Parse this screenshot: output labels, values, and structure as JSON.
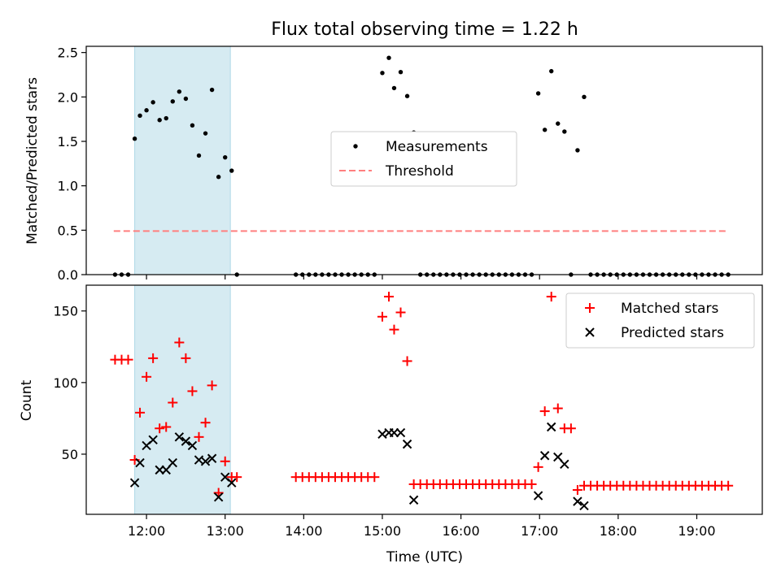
{
  "chart_data": [
    {
      "type": "scatter",
      "title": "Flux total observing time = 1.22 h",
      "ylabel": "Matched/Predicted stars",
      "xlabel": "",
      "xlim": [
        "11:14",
        "19:50"
      ],
      "ylim": [
        0,
        2.57
      ],
      "yticks": [
        0.0,
        0.5,
        1.0,
        1.5,
        2.0,
        2.5
      ],
      "ytick_labels": [
        "0.0",
        "0.5",
        "1.0",
        "1.5",
        "2.0",
        "2.5"
      ],
      "highlight_span": [
        "11:51",
        "13:04"
      ],
      "threshold": {
        "name": "Threshold",
        "value": 0.49,
        "x_start": "11:35",
        "x_end": "19:24",
        "color": "#ff7f7f"
      },
      "series": [
        {
          "name": "Measurements",
          "marker": "dot",
          "color": "#000000",
          "points": [
            [
              "11:36",
              0
            ],
            [
              "11:41",
              0
            ],
            [
              "11:46",
              0
            ],
            [
              "11:51",
              1.53
            ],
            [
              "11:55",
              1.79
            ],
            [
              "12:00",
              1.85
            ],
            [
              "12:05",
              1.94
            ],
            [
              "12:10",
              1.74
            ],
            [
              "12:15",
              1.76
            ],
            [
              "12:20",
              1.95
            ],
            [
              "12:25",
              2.06
            ],
            [
              "12:30",
              1.98
            ],
            [
              "12:35",
              1.68
            ],
            [
              "12:40",
              1.34
            ],
            [
              "12:45",
              1.59
            ],
            [
              "12:50",
              2.08
            ],
            [
              "12:55",
              1.1
            ],
            [
              "13:00",
              1.32
            ],
            [
              "13:05",
              1.17
            ],
            [
              "13:09",
              0
            ],
            [
              "13:54",
              0
            ],
            [
              "13:59",
              0
            ],
            [
              "14:04",
              0
            ],
            [
              "14:09",
              0
            ],
            [
              "14:14",
              0
            ],
            [
              "14:19",
              0
            ],
            [
              "14:24",
              0
            ],
            [
              "14:29",
              0
            ],
            [
              "14:34",
              0
            ],
            [
              "14:39",
              0
            ],
            [
              "14:44",
              0
            ],
            [
              "14:49",
              0
            ],
            [
              "14:54",
              0
            ],
            [
              "15:00",
              2.27
            ],
            [
              "15:05",
              2.44
            ],
            [
              "15:09",
              2.1
            ],
            [
              "15:14",
              2.28
            ],
            [
              "15:19",
              2.01
            ],
            [
              "15:24",
              1.6
            ],
            [
              "15:29",
              0
            ],
            [
              "15:34",
              0
            ],
            [
              "15:39",
              0
            ],
            [
              "15:44",
              0
            ],
            [
              "15:49",
              0
            ],
            [
              "15:54",
              0
            ],
            [
              "15:59",
              0
            ],
            [
              "16:04",
              0
            ],
            [
              "16:09",
              0
            ],
            [
              "16:14",
              0
            ],
            [
              "16:19",
              0
            ],
            [
              "16:24",
              0
            ],
            [
              "16:29",
              0
            ],
            [
              "16:34",
              0
            ],
            [
              "16:39",
              0
            ],
            [
              "16:44",
              0
            ],
            [
              "16:49",
              0
            ],
            [
              "16:54",
              0
            ],
            [
              "16:59",
              2.04
            ],
            [
              "17:04",
              1.63
            ],
            [
              "17:09",
              2.29
            ],
            [
              "17:14",
              1.7
            ],
            [
              "17:19",
              1.61
            ],
            [
              "17:24",
              0
            ],
            [
              "17:29",
              1.4
            ],
            [
              "17:34",
              2.0
            ],
            [
              "17:39",
              0
            ],
            [
              "17:44",
              0
            ],
            [
              "17:49",
              0
            ],
            [
              "17:54",
              0
            ],
            [
              "17:59",
              0
            ],
            [
              "18:04",
              0
            ],
            [
              "18:09",
              0
            ],
            [
              "18:14",
              0
            ],
            [
              "18:19",
              0
            ],
            [
              "18:24",
              0
            ],
            [
              "18:29",
              0
            ],
            [
              "18:34",
              0
            ],
            [
              "18:39",
              0
            ],
            [
              "18:44",
              0
            ],
            [
              "18:49",
              0
            ],
            [
              "18:54",
              0
            ],
            [
              "18:59",
              0
            ],
            [
              "19:04",
              0
            ],
            [
              "19:09",
              0
            ],
            [
              "19:14",
              0
            ],
            [
              "19:19",
              0
            ],
            [
              "19:24",
              0
            ]
          ]
        }
      ],
      "legend": {
        "placement": "center"
      }
    },
    {
      "type": "scatter",
      "title": "",
      "ylabel": "Count",
      "xlabel": "Time (UTC)",
      "xlim": [
        "11:14",
        "19:50"
      ],
      "ylim": [
        8,
        168
      ],
      "yticks": [
        50,
        100,
        150
      ],
      "ytick_labels": [
        "50",
        "100",
        "150"
      ],
      "xticks": [
        "12:00",
        "13:00",
        "14:00",
        "15:00",
        "16:00",
        "17:00",
        "18:00",
        "19:00"
      ],
      "xtick_labels": [
        "12:00",
        "13:00",
        "14:00",
        "15:00",
        "16:00",
        "17:00",
        "18:00",
        "19:00"
      ],
      "highlight_span": [
        "11:51",
        "13:04"
      ],
      "series": [
        {
          "name": "Matched stars",
          "marker": "plus",
          "color": "#ff0000",
          "points": [
            [
              "11:36",
              116
            ],
            [
              "11:41",
              116
            ],
            [
              "11:46",
              116
            ],
            [
              "11:51",
              46
            ],
            [
              "11:55",
              79
            ],
            [
              "12:00",
              104
            ],
            [
              "12:05",
              117
            ],
            [
              "12:10",
              68
            ],
            [
              "12:15",
              69
            ],
            [
              "12:20",
              86
            ],
            [
              "12:25",
              128
            ],
            [
              "12:30",
              117
            ],
            [
              "12:35",
              94
            ],
            [
              "12:40",
              62
            ],
            [
              "12:45",
              72
            ],
            [
              "12:50",
              98
            ],
            [
              "12:55",
              23
            ],
            [
              "13:00",
              45
            ],
            [
              "13:05",
              34
            ],
            [
              "13:09",
              34
            ],
            [
              "13:54",
              34
            ],
            [
              "13:59",
              34
            ],
            [
              "14:04",
              34
            ],
            [
              "14:09",
              34
            ],
            [
              "14:14",
              34
            ],
            [
              "14:19",
              34
            ],
            [
              "14:24",
              34
            ],
            [
              "14:29",
              34
            ],
            [
              "14:34",
              34
            ],
            [
              "14:39",
              34
            ],
            [
              "14:44",
              34
            ],
            [
              "14:49",
              34
            ],
            [
              "14:54",
              34
            ],
            [
              "15:00",
              146
            ],
            [
              "15:05",
              160
            ],
            [
              "15:09",
              137
            ],
            [
              "15:14",
              149
            ],
            [
              "15:19",
              115
            ],
            [
              "15:24",
              29
            ],
            [
              "15:29",
              29
            ],
            [
              "15:34",
              29
            ],
            [
              "15:39",
              29
            ],
            [
              "15:44",
              29
            ],
            [
              "15:49",
              29
            ],
            [
              "15:54",
              29
            ],
            [
              "15:59",
              29
            ],
            [
              "16:04",
              29
            ],
            [
              "16:09",
              29
            ],
            [
              "16:14",
              29
            ],
            [
              "16:19",
              29
            ],
            [
              "16:24",
              29
            ],
            [
              "16:29",
              29
            ],
            [
              "16:34",
              29
            ],
            [
              "16:39",
              29
            ],
            [
              "16:44",
              29
            ],
            [
              "16:49",
              29
            ],
            [
              "16:54",
              29
            ],
            [
              "16:59",
              41
            ],
            [
              "17:04",
              80
            ],
            [
              "17:09",
              160
            ],
            [
              "17:14",
              82
            ],
            [
              "17:19",
              68
            ],
            [
              "17:24",
              68
            ],
            [
              "17:29",
              25
            ],
            [
              "17:34",
              28
            ],
            [
              "17:39",
              28
            ],
            [
              "17:44",
              28
            ],
            [
              "17:49",
              28
            ],
            [
              "17:54",
              28
            ],
            [
              "17:59",
              28
            ],
            [
              "18:04",
              28
            ],
            [
              "18:09",
              28
            ],
            [
              "18:14",
              28
            ],
            [
              "18:19",
              28
            ],
            [
              "18:24",
              28
            ],
            [
              "18:29",
              28
            ],
            [
              "18:34",
              28
            ],
            [
              "18:39",
              28
            ],
            [
              "18:44",
              28
            ],
            [
              "18:49",
              28
            ],
            [
              "18:54",
              28
            ],
            [
              "18:59",
              28
            ],
            [
              "19:04",
              28
            ],
            [
              "19:09",
              28
            ],
            [
              "19:14",
              28
            ],
            [
              "19:19",
              28
            ],
            [
              "19:24",
              28
            ]
          ]
        },
        {
          "name": "Predicted stars",
          "marker": "x",
          "color": "#000000",
          "points": [
            [
              "11:51",
              30
            ],
            [
              "11:55",
              44
            ],
            [
              "12:00",
              56
            ],
            [
              "12:05",
              60
            ],
            [
              "12:10",
              39
            ],
            [
              "12:15",
              39
            ],
            [
              "12:20",
              44
            ],
            [
              "12:25",
              62
            ],
            [
              "12:30",
              59
            ],
            [
              "12:35",
              56
            ],
            [
              "12:40",
              46
            ],
            [
              "12:45",
              45
            ],
            [
              "12:50",
              47
            ],
            [
              "12:55",
              20
            ],
            [
              "13:00",
              34
            ],
            [
              "13:05",
              30
            ],
            [
              "15:00",
              64
            ],
            [
              "15:05",
              65
            ],
            [
              "15:09",
              65
            ],
            [
              "15:14",
              65
            ],
            [
              "15:19",
              57
            ],
            [
              "15:24",
              18
            ],
            [
              "16:59",
              21
            ],
            [
              "17:04",
              49
            ],
            [
              "17:09",
              69
            ],
            [
              "17:14",
              48
            ],
            [
              "17:19",
              43
            ],
            [
              "17:29",
              17
            ],
            [
              "17:34",
              14
            ]
          ]
        }
      ],
      "legend": {
        "placement": "upper-right"
      }
    }
  ]
}
